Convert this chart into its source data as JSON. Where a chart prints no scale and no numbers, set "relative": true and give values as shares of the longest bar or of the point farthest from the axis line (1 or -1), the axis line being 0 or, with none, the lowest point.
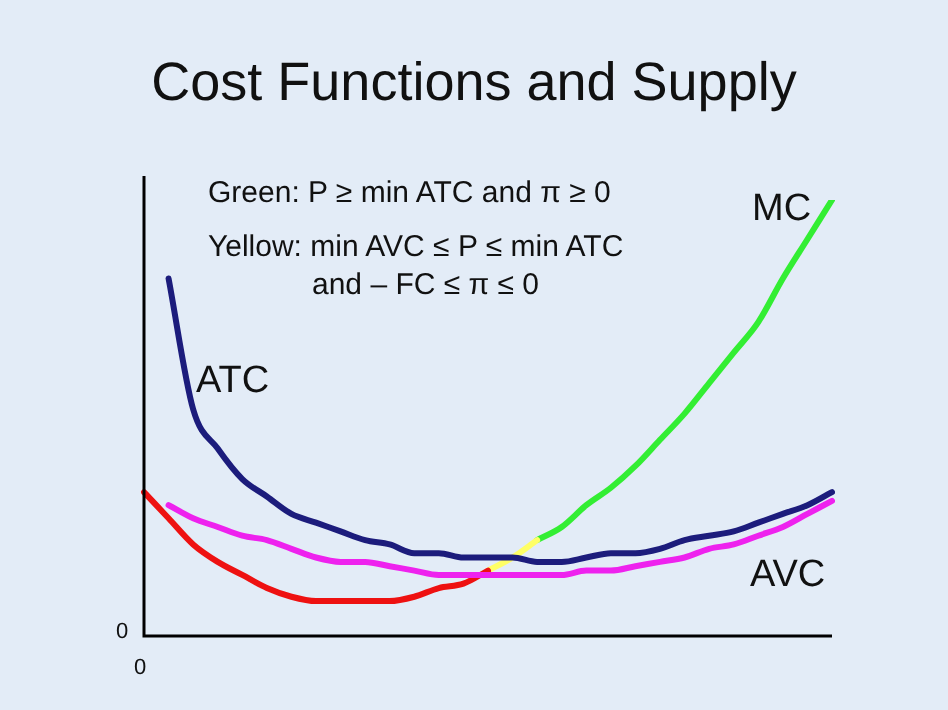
{
  "chart_data": {
    "type": "line",
    "title": "Cost Functions and Supply",
    "relative": true,
    "annotations": [
      "Green: P ≥ min ATC and π ≥ 0",
      "Yellow: min AVC ≤ P ≤ min ATC",
      "and – FC ≤ π ≤ 0",
      "0",
      "0"
    ],
    "categories": [
      null,
      null,
      null,
      null,
      null,
      null,
      null,
      null,
      null,
      null,
      null,
      null,
      null,
      null,
      null,
      null,
      null,
      null,
      null,
      null,
      null,
      null,
      null,
      null,
      null,
      null,
      null,
      null,
      null
    ],
    "series": [
      {
        "name": "ATC",
        "color": "#1c1c7c",
        "values": [
          null,
          0.82,
          0.52,
          0.43,
          0.36,
          0.32,
          0.28,
          0.26,
          0.24,
          0.22,
          0.21,
          0.19,
          0.19,
          0.18,
          0.18,
          0.18,
          0.17,
          0.17,
          0.18,
          0.19,
          0.19,
          0.2,
          0.22,
          0.23,
          0.24,
          0.26,
          0.28,
          0.3,
          0.33
        ]
      },
      {
        "name": "AVC",
        "color": "#ee22ee",
        "values": [
          null,
          0.3,
          0.27,
          0.25,
          0.23,
          0.22,
          0.2,
          0.18,
          0.17,
          0.17,
          0.16,
          0.15,
          0.14,
          0.14,
          0.14,
          0.14,
          0.14,
          0.14,
          0.15,
          0.15,
          0.16,
          0.17,
          0.18,
          0.2,
          0.21,
          0.23,
          0.25,
          0.28,
          0.31
        ]
      },
      {
        "color": "#ee1111",
        "values": [
          0.33,
          0.27,
          0.21,
          0.17,
          0.14,
          0.11,
          0.09,
          0.08,
          0.08,
          0.08,
          0.08,
          0.09,
          0.11,
          0.12,
          0.15,
          null,
          null,
          null,
          null,
          null,
          null,
          null,
          null,
          null,
          null,
          null,
          null,
          null,
          null
        ]
      },
      {
        "color": "#ffff66",
        "values": [
          null,
          null,
          null,
          null,
          null,
          null,
          null,
          null,
          null,
          null,
          null,
          null,
          null,
          null,
          0.15,
          0.18,
          0.22,
          null,
          null,
          null,
          null,
          null,
          null,
          null,
          null,
          null,
          null,
          null,
          null
        ]
      },
      {
        "name": "MC",
        "color": "#33ee33",
        "values": [
          null,
          null,
          null,
          null,
          null,
          null,
          null,
          null,
          null,
          null,
          null,
          null,
          null,
          null,
          null,
          null,
          0.22,
          0.25,
          0.3,
          0.34,
          0.39,
          0.45,
          0.51,
          0.58,
          0.65,
          0.72,
          0.82,
          0.91,
          1
        ]
      }
    ]
  }
}
